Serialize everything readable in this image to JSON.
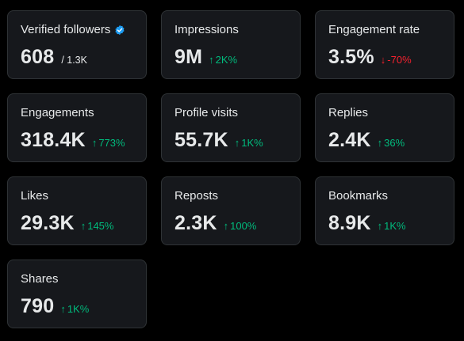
{
  "colors": {
    "background": "#000000",
    "card": "#16181c",
    "border": "#2f3336",
    "text": "#e7e9ea",
    "positive": "#00ba7c",
    "negative": "#f4212e",
    "verified": "#1d9bf0"
  },
  "icons": {
    "verified": "verified-badge-icon",
    "up": "arrow-up-icon",
    "down": "arrow-down-icon"
  },
  "cards": [
    {
      "label": "Verified followers",
      "value": "608",
      "sub": "/ 1.3K"
    },
    {
      "label": "Impressions",
      "value": "9M",
      "delta": "2K%",
      "direction": "up"
    },
    {
      "label": "Engagement rate",
      "value": "3.5%",
      "delta": "-70%",
      "direction": "down"
    },
    {
      "label": "Engagements",
      "value": "318.4K",
      "delta": "773%",
      "direction": "up"
    },
    {
      "label": "Profile visits",
      "value": "55.7K",
      "delta": "1K%",
      "direction": "up"
    },
    {
      "label": "Replies",
      "value": "2.4K",
      "delta": "36%",
      "direction": "up"
    },
    {
      "label": "Likes",
      "value": "29.3K",
      "delta": "145%",
      "direction": "up"
    },
    {
      "label": "Reposts",
      "value": "2.3K",
      "delta": "100%",
      "direction": "up"
    },
    {
      "label": "Bookmarks",
      "value": "8.9K",
      "delta": "1K%",
      "direction": "up"
    },
    {
      "label": "Shares",
      "value": "790",
      "delta": "1K%",
      "direction": "up"
    }
  ]
}
